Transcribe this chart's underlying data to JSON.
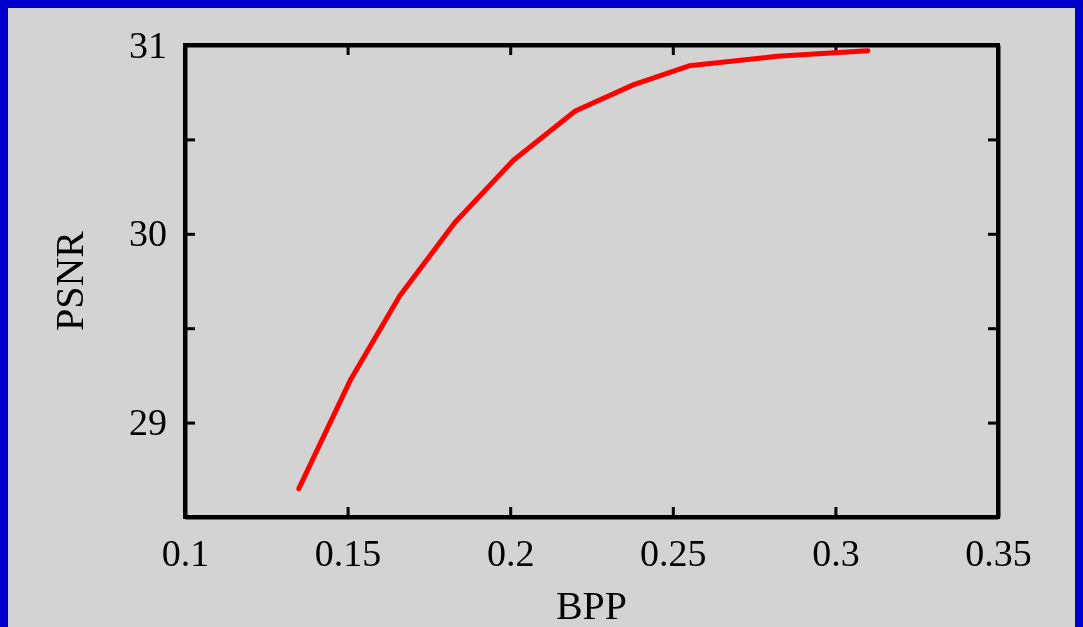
{
  "chart_data": {
    "type": "line",
    "xlabel": "BPP",
    "ylabel": "PSNR",
    "x": [
      0.135,
      0.151,
      0.166,
      0.183,
      0.201,
      0.22,
      0.238,
      0.255,
      0.282,
      0.31
    ],
    "series": [
      {
        "color": "#ff0000",
        "values": [
          28.65,
          29.23,
          29.67,
          30.06,
          30.39,
          30.65,
          30.79,
          30.89,
          30.94,
          30.97
        ]
      }
    ],
    "xlim": [
      0.1,
      0.35
    ],
    "xticks": [
      0.1,
      0.15,
      0.2,
      0.25,
      0.3,
      0.35
    ],
    "ylim": [
      28.5,
      31
    ],
    "yticks": [
      {
        "value": 29,
        "label": "29"
      },
      {
        "value": 29.5,
        "label": null
      },
      {
        "value": 30,
        "label": "30"
      },
      {
        "value": 30.5,
        "label": null
      },
      {
        "value": 31,
        "label": "31"
      }
    ],
    "grid": false,
    "marker": "none",
    "line_style": "solid"
  }
}
